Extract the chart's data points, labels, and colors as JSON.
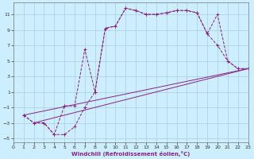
{
  "xlabel": "Windchill (Refroidissement éolien,°C)",
  "bg_color": "#cceeff",
  "grid_color": "#aaccdd",
  "line_color": "#882288",
  "xlim": [
    0,
    23
  ],
  "ylim": [
    -5.5,
    12.5
  ],
  "xticks": [
    0,
    1,
    2,
    3,
    4,
    5,
    6,
    7,
    8,
    9,
    10,
    11,
    12,
    13,
    14,
    15,
    16,
    17,
    18,
    19,
    20,
    21,
    22,
    23
  ],
  "yticks": [
    -5,
    -3,
    -1,
    1,
    3,
    5,
    7,
    9,
    11
  ],
  "lines": [
    {
      "x": [
        1,
        2,
        3,
        4,
        5,
        6,
        7,
        8,
        9,
        10,
        11,
        12,
        13,
        14,
        15,
        16,
        17,
        18,
        19,
        20,
        21,
        22,
        23
      ],
      "y": [
        -2,
        -3,
        -3,
        -4.5,
        -4.5,
        -3.5,
        -1,
        1.0,
        9.2,
        9.5,
        11.8,
        11.5,
        11.0,
        11.0,
        11.2,
        11.5,
        11.5,
        11.2,
        8.5,
        7.0,
        5.0,
        4.0,
        4.0
      ],
      "marker": true
    },
    {
      "x": [
        1,
        2,
        3,
        4,
        5,
        6,
        7,
        8,
        9,
        10,
        11,
        12,
        13,
        14,
        15,
        16,
        17,
        18,
        19,
        20,
        21,
        22,
        23
      ],
      "y": [
        -2,
        -3,
        -3,
        -4.5,
        -0.8,
        -0.8,
        6.5,
        1.0,
        9.2,
        9.5,
        11.8,
        11.5,
        11.0,
        11.0,
        11.2,
        11.5,
        11.5,
        11.2,
        8.5,
        11.0,
        5.0,
        4.0,
        4.0
      ],
      "marker": true
    },
    {
      "x": [
        1,
        23
      ],
      "y": [
        -2,
        4.0
      ],
      "marker": false
    },
    {
      "x": [
        2,
        23
      ],
      "y": [
        -3,
        4.0
      ],
      "marker": false
    }
  ]
}
